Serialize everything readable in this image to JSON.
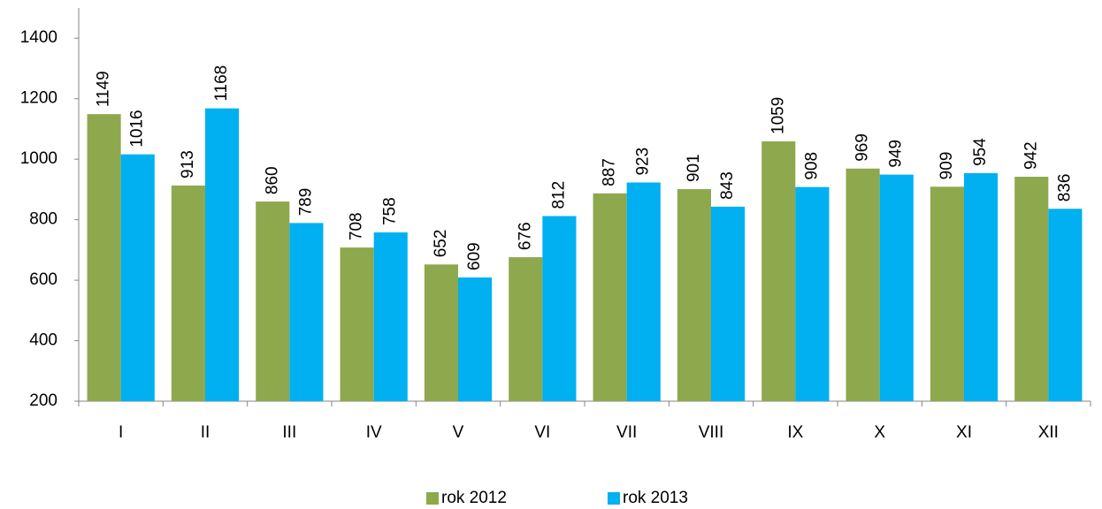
{
  "chart_data": {
    "type": "bar",
    "categories": [
      "I",
      "II",
      "III",
      "IV",
      "V",
      "VI",
      "VII",
      "VIII",
      "IX",
      "X",
      "XI",
      "XII"
    ],
    "series": [
      {
        "name": "rok 2012",
        "color": "#8ea84e",
        "values": [
          1149,
          913,
          860,
          708,
          652,
          676,
          887,
          901,
          1059,
          969,
          909,
          942
        ]
      },
      {
        "name": "rok 2013",
        "color": "#00b0f0",
        "values": [
          1016,
          1168,
          789,
          758,
          609,
          812,
          923,
          843,
          908,
          949,
          954,
          836
        ]
      }
    ],
    "ylim": [
      200,
      1500
    ],
    "yticks": [
      200,
      400,
      600,
      800,
      1000,
      1200,
      1400
    ],
    "grid": false,
    "legend": "bottom"
  }
}
